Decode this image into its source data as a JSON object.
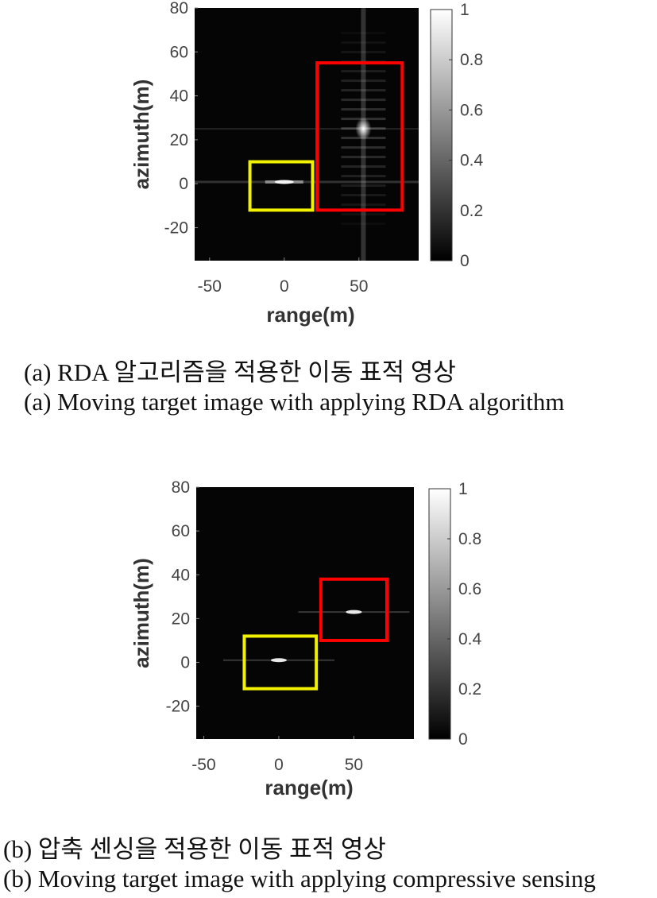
{
  "chart_data": [
    {
      "type": "heatmap",
      "xlabel": "range(m)",
      "ylabel": "azimuth(m)",
      "xlim": [
        -60,
        90
      ],
      "ylim": [
        -35,
        80
      ],
      "xticks": [
        "-50",
        "0",
        "50"
      ],
      "yticks": [
        "80",
        "60",
        "40",
        "20",
        "0",
        "-20"
      ],
      "colorbar": {
        "min": 0,
        "max": 1,
        "ticks": [
          "1",
          "0.8",
          "0.6",
          "0.4",
          "0.2",
          "0"
        ]
      },
      "colormap": "gray",
      "targets": [
        {
          "range": 0,
          "azimuth": 1,
          "intensity": 0.9,
          "spread": "range sidelobes"
        },
        {
          "range": 53,
          "azimuth": 25,
          "intensity": 1.0,
          "spread": "defocused in azimuth"
        }
      ],
      "boxes": [
        {
          "color": "#f2f200",
          "x": [
            -23,
            19
          ],
          "y": [
            -12,
            10
          ]
        },
        {
          "color": "#ff0000",
          "x": [
            22,
            79
          ],
          "y": [
            -12,
            55
          ]
        }
      ],
      "captions": [
        "(a) RDA 알고리즘을 적용한 이동 표적 영상",
        "(a) Moving target image with applying RDA algorithm"
      ]
    },
    {
      "type": "heatmap",
      "xlabel": "range(m)",
      "ylabel": "azimuth(m)",
      "xlim": [
        -55,
        90
      ],
      "ylim": [
        -35,
        80
      ],
      "xticks": [
        "-50",
        "0",
        "50"
      ],
      "yticks": [
        "80",
        "60",
        "40",
        "20",
        "0",
        "-20"
      ],
      "colorbar": {
        "min": 0,
        "max": 1,
        "ticks": [
          "1",
          "0.8",
          "0.6",
          "0.4",
          "0.2",
          "0"
        ]
      },
      "colormap": "gray",
      "targets": [
        {
          "range": 0,
          "azimuth": 1,
          "intensity": 0.9,
          "spread": "focused"
        },
        {
          "range": 50,
          "azimuth": 23,
          "intensity": 0.9,
          "spread": "focused"
        }
      ],
      "boxes": [
        {
          "color": "#f2f200",
          "x": [
            -23,
            25
          ],
          "y": [
            -12,
            12
          ]
        },
        {
          "color": "#ff0000",
          "x": [
            28,
            72
          ],
          "y": [
            10,
            38
          ]
        }
      ],
      "captions": [
        "(b) 압축 센싱을 적용한 이동 표적 영상",
        "(b) Moving target image with applying compressive sensing"
      ]
    }
  ]
}
